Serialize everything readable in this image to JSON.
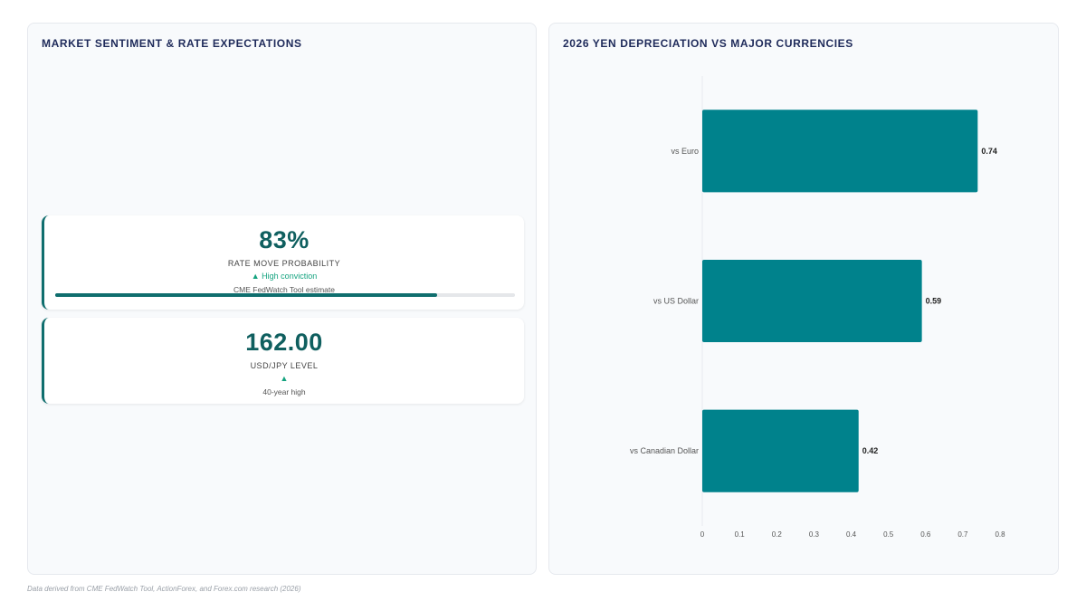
{
  "left_panel": {
    "title": "MARKET SENTIMENT & RATE EXPECTATIONS",
    "kpis": [
      {
        "value": "83%",
        "label": "RATE MOVE PROBABILITY",
        "trend": "▲ High conviction",
        "note": "CME FedWatch Tool estimate",
        "progress": 0.83
      },
      {
        "value": "162.00",
        "label": "USD/JPY LEVEL",
        "trend": "▲",
        "note": "40-year high"
      }
    ]
  },
  "right_panel": {
    "title": "2026 YEN DEPRECIATION VS MAJOR CURRENCIES"
  },
  "footer": "Data derived from CME FedWatch Tool, ActionForex, and Forex.com research (2026)",
  "colors": {
    "accent": "#0f6e6e",
    "bar": "#00828c",
    "trend_up": "#14a37f",
    "title": "#1e2a5a"
  },
  "chart_data": {
    "type": "bar",
    "orientation": "horizontal",
    "title": "2026 YEN DEPRECIATION VS MAJOR CURRENCIES",
    "categories": [
      "vs Euro",
      "vs US Dollar",
      "vs Canadian Dollar"
    ],
    "values": [
      0.74,
      0.59,
      0.42
    ],
    "value_labels": [
      "0.74",
      "0.59",
      "0.42"
    ],
    "x_ticks": [
      "0",
      "0.1",
      "0.2",
      "0.3",
      "0.4",
      "0.5",
      "0.6",
      "0.7",
      "0.8"
    ],
    "xlim": [
      0,
      0.8
    ],
    "xlabel": "",
    "ylabel": "",
    "grid": false,
    "legend": "none"
  }
}
